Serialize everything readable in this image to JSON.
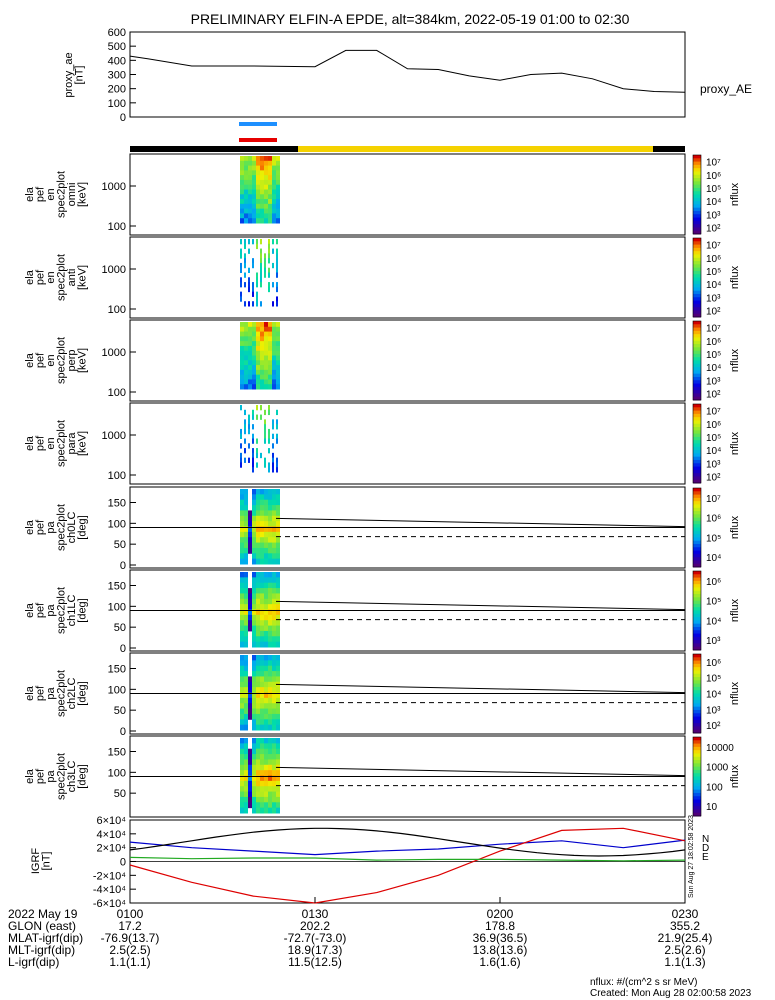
{
  "title": "PRELIMINARY ELFIN-A EPDE, alt=384km, 2022-05-19 01:00 to 02:30",
  "colors": {
    "orbit_black": "#000000",
    "orbit_yellow": "#f5d200",
    "mode_blue": "#1e90ff",
    "mode_red": "#e60000",
    "bx": "#0000cc",
    "by": "#22aa22",
    "bz": "#dd0000",
    "b_total": "#000000"
  },
  "proxy_ae": {
    "ylabel": "proxy_ae\n[nT]",
    "side_label": "proxy_AE",
    "ticks": [
      "0",
      "100",
      "200",
      "300",
      "400",
      "500",
      "600"
    ]
  },
  "spec_panels": [
    {
      "ylabel": "ela\npef\nen\nspec2plot\nomni\n[keV]",
      "ticks": [
        "100",
        "1000"
      ]
    },
    {
      "ylabel": "ela\npef\nen\nspec2plot\nanti\n[keV]",
      "ticks": [
        "100",
        "1000"
      ]
    },
    {
      "ylabel": "ela\npef\nen\nspec2plot\nperp\n[keV]",
      "ticks": [
        "100",
        "1000"
      ]
    },
    {
      "ylabel": "ela\npef\nen\nspec2plot\npara\n[keV]",
      "ticks": [
        "100",
        "1000"
      ]
    }
  ],
  "pa_panels": [
    {
      "ylabel": "ela\npef\npa\nspec2plot\nch0LC\n[deg]",
      "ticks": [
        "0",
        "50",
        "100",
        "150"
      ]
    },
    {
      "ylabel": "ela\npef\npa\nspec2plot\nch1LC\n[deg]",
      "ticks": [
        "0",
        "50",
        "100",
        "150"
      ]
    },
    {
      "ylabel": "ela\npef\npa\nspec2plot\nch2LC\n[deg]",
      "ticks": [
        "0",
        "50",
        "100",
        "150"
      ]
    },
    {
      "ylabel": "ela\npef\npa\nspec2plot\nch3LC\n[deg]",
      "ticks": [
        "50",
        "100",
        "150"
      ]
    }
  ],
  "colorbars": [
    {
      "label": "nflux",
      "ticks": [
        "10²",
        "10³",
        "10⁴",
        "10⁵",
        "10⁶",
        "10⁷"
      ]
    },
    {
      "label": "nflux",
      "ticks": [
        "10²",
        "10³",
        "10⁴",
        "10⁵",
        "10⁶",
        "10⁷"
      ]
    },
    {
      "label": "nflux",
      "ticks": [
        "10²",
        "10³",
        "10⁴",
        "10⁵",
        "10⁶",
        "10⁷"
      ]
    },
    {
      "label": "nflux",
      "ticks": [
        "10²",
        "10³",
        "10⁴",
        "10⁵",
        "10⁶",
        "10⁷"
      ]
    },
    {
      "label": "nflux",
      "ticks": [
        "10⁴",
        "10⁵",
        "10⁶",
        "10⁷"
      ]
    },
    {
      "label": "nflux",
      "ticks": [
        "10³",
        "10⁴",
        "10⁵",
        "10⁶"
      ]
    },
    {
      "label": "nflux",
      "ticks": [
        "10²",
        "10³",
        "10⁴",
        "10⁵",
        "10⁶"
      ]
    },
    {
      "label": "nflux",
      "ticks": [
        "10",
        "100",
        "1000",
        "10000"
      ]
    }
  ],
  "igrf": {
    "ylabel": "IGRF\n[nT]",
    "ticks": [
      "-6×10⁴",
      "-4×10⁴",
      "-2×10⁴",
      "0",
      "2×10⁴",
      "4×10⁴",
      "6×10⁴"
    ],
    "legend": [
      "N",
      "D",
      "E"
    ],
    "stamp": "Sun Aug 27 18:02:58 2023"
  },
  "footer": {
    "row_labels": [
      "2022 May 19",
      "GLON (east)",
      "MLAT-igrf(dip)",
      "MLT-igrf(dip)",
      "L-igrf(dip)"
    ],
    "columns": [
      {
        "time": "0100",
        "vals": [
          "17.2",
          "-76.9(13.7)",
          "2.5(2.5)",
          "1.1(1.1)"
        ]
      },
      {
        "time": "0130",
        "vals": [
          "202.2",
          "-72.7(-73.0)",
          "18.9(17.3)",
          "11.5(12.5)"
        ]
      },
      {
        "time": "0200",
        "vals": [
          "178.8",
          "36.9(36.5)",
          "13.8(13.6)",
          "1.6(1.6)"
        ]
      },
      {
        "time": "0230",
        "vals": [
          "355.2",
          "21.9(25.4)",
          "2.5(2.6)",
          "1.1(1.3)"
        ]
      }
    ],
    "units_note": "nflux: #/(cm^2 s sr MeV)",
    "created": "Created: Mon Aug 28 02:00:58 2023"
  },
  "chart_data": {
    "type": "line",
    "title": "PRELIMINARY ELFIN-A EPDE, alt=384km, 2022-05-19 01:00 to 02:30",
    "x_range": [
      "01:00",
      "02:30"
    ],
    "proxy_ae_series": {
      "name": "proxy_AE",
      "t_min": [
        0,
        3,
        10,
        20,
        30,
        35,
        40,
        45,
        50,
        55,
        60,
        65,
        70,
        75,
        80,
        85,
        90
      ],
      "values": [
        430,
        410,
        360,
        360,
        355,
        470,
        470,
        340,
        335,
        290,
        260,
        300,
        310,
        270,
        200,
        180,
        175
      ],
      "ylim": [
        0,
        600
      ]
    },
    "pitch_angle_reference_line_deg": 90,
    "loss_cone_dashed_deg": 68,
    "igrf_series": [
      {
        "name": "N",
        "t_min": [
          0,
          10,
          20,
          30,
          40,
          50,
          60,
          70,
          80,
          90
        ],
        "values": [
          28000,
          20000,
          15000,
          10000,
          15000,
          18000,
          25000,
          30000,
          20000,
          31000
        ]
      },
      {
        "name": "D",
        "t_min": [
          0,
          10,
          20,
          30,
          40,
          50,
          60,
          70,
          80,
          90
        ],
        "values": [
          -5000,
          -30000,
          -50000,
          -60000,
          -45000,
          -20000,
          15000,
          45000,
          48000,
          30000
        ]
      },
      {
        "name": "E",
        "t_min": [
          0,
          10,
          20,
          30,
          40,
          50,
          60,
          70,
          80,
          90
        ],
        "values": [
          6000,
          4000,
          5000,
          5000,
          2000,
          3000,
          3000,
          2000,
          1000,
          2000
        ]
      }
    ],
    "igrf_ylim": [
      -60000,
      60000
    ]
  }
}
